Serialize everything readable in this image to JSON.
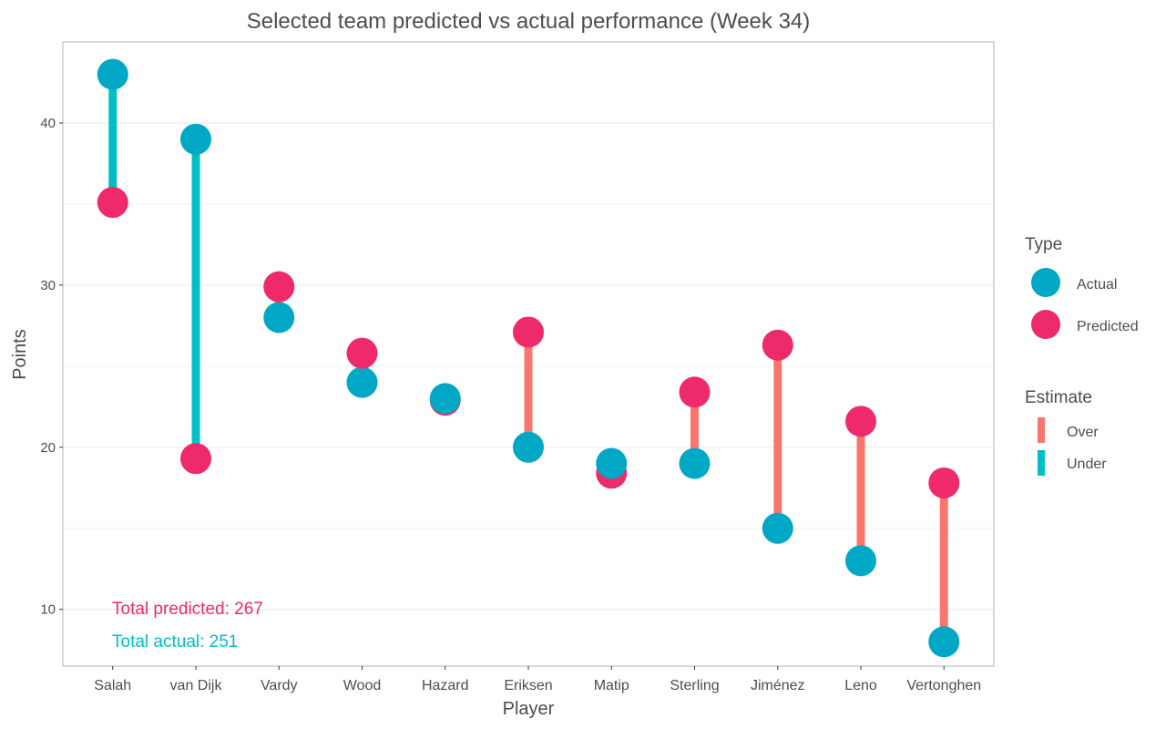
{
  "chart_data": {
    "type": "dumbbell",
    "title": "Selected team predicted vs actual performance (Week 34)",
    "xlabel": "Player",
    "ylabel": "Points",
    "ylim": [
      6.5,
      45
    ],
    "yticks": [
      10,
      20,
      30,
      40
    ],
    "grid": true,
    "legend_position": "right",
    "categories": [
      "Salah",
      "van Dijk",
      "Vardy",
      "Wood",
      "Hazard",
      "Eriksen",
      "Matip",
      "Sterling",
      "Jiménez",
      "Leno",
      "Vertonghen"
    ],
    "series": [
      {
        "name": "Actual",
        "values": [
          43,
          39,
          28,
          24,
          23,
          20,
          19,
          19,
          15,
          13,
          8
        ]
      },
      {
        "name": "Predicted",
        "values": [
          35.1,
          19.3,
          29.9,
          25.8,
          22.9,
          27.1,
          18.4,
          23.4,
          26.3,
          21.6,
          17.8
        ]
      }
    ],
    "estimate": [
      "Under",
      "Under",
      "Over",
      "Over",
      "Under",
      "Over",
      "Under",
      "Over",
      "Over",
      "Over",
      "Over"
    ],
    "legends": {
      "type": {
        "title": "Type",
        "items": [
          "Actual",
          "Predicted"
        ]
      },
      "estimate": {
        "title": "Estimate",
        "items": [
          "Over",
          "Under"
        ]
      }
    },
    "annotations": {
      "total_predicted": "Total predicted: 267",
      "total_actual": "Total actual: 251"
    },
    "colors": {
      "actual": "#00a8c6",
      "predicted": "#ee2a6a",
      "over": "#f8766d",
      "under": "#00bfc4",
      "grid": "#ebebeb",
      "panel_border": "#b3b3b3",
      "text": "#4d4d4d"
    }
  }
}
